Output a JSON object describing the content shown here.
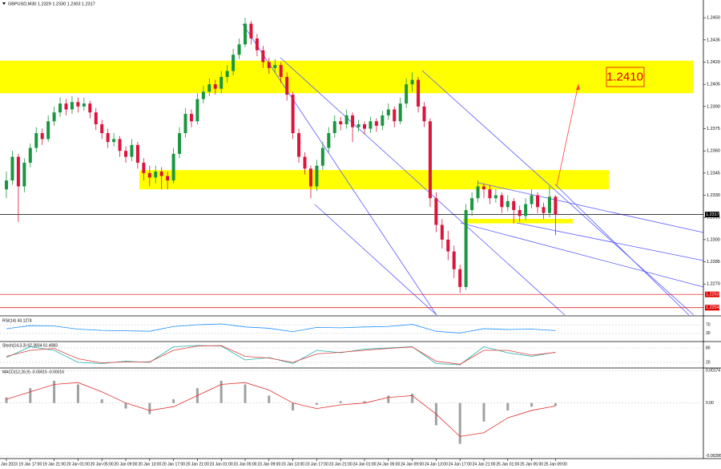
{
  "header": "GBPUSD,M30  1.2329 1.2330 1.2303 1.2317",
  "annotation": "1.2410",
  "chart_data": [
    {
      "type": "candlestick",
      "up_color": "#1a9641",
      "down_color": "#dc143c",
      "zone_color": "#ffff00",
      "categories": [
        "19 Jan 2023",
        null,
        null,
        null,
        "19 Jan 17:00",
        null,
        null,
        null,
        "19 Jan 21:00",
        null,
        null,
        null,
        "20 Jan 01:00",
        null,
        null,
        null,
        "20 Jan 05:00",
        null,
        null,
        null,
        "20 Jan 09:00",
        null,
        null,
        null,
        "20 Jan 13:00",
        null,
        null,
        null,
        "20 Jan 17:00",
        null,
        null,
        null,
        "20 Jan 21:00",
        null,
        null,
        null,
        "23 Jan 01:00",
        null,
        null,
        null,
        "23 Jan 05:00",
        null,
        null,
        null,
        "23 Jan 09:00",
        null,
        null,
        null,
        "23 Jan 13:00",
        null,
        null,
        null,
        "23 Jan 17:00",
        null,
        null,
        null,
        "23 Jan 21:00",
        null,
        null,
        null,
        "24 Jan 01:00",
        null,
        null,
        null,
        "24 Jan 05:00",
        null,
        null,
        null,
        "24 Jan 09:00",
        null,
        null,
        null,
        "24 Jan 13:00",
        null,
        null,
        null,
        "24 Jan 17:00",
        null,
        null,
        null,
        "24 Jan 21:00",
        null,
        null,
        null,
        "25 Jan 01:00",
        null,
        null,
        null,
        "25 Jan 05:00",
        null,
        null,
        null,
        "25 Jan 09:00"
      ],
      "ohlc": [
        [
          1.2334,
          1.2346,
          1.2328,
          1.234
        ],
        [
          1.234,
          1.236,
          1.2337,
          1.2356
        ],
        [
          1.2356,
          1.2358,
          1.2312,
          1.2336
        ],
        [
          1.2336,
          1.2355,
          1.2332,
          1.2352
        ],
        [
          1.2352,
          1.2365,
          1.2349,
          1.2362
        ],
        [
          1.2362,
          1.2376,
          1.2359,
          1.2372
        ],
        [
          1.2372,
          1.2375,
          1.2364,
          1.2368
        ],
        [
          1.2368,
          1.2384,
          1.2366,
          1.238
        ],
        [
          1.238,
          1.239,
          1.2377,
          1.2386
        ],
        [
          1.2386,
          1.2396,
          1.2383,
          1.2392
        ],
        [
          1.2392,
          1.2395,
          1.2384,
          1.2388
        ],
        [
          1.2388,
          1.2397,
          1.2385,
          1.2393
        ],
        [
          1.2393,
          1.2396,
          1.2386,
          1.239
        ],
        [
          1.239,
          1.2396,
          1.2387,
          1.2392
        ],
        [
          1.2392,
          1.2394,
          1.2382,
          1.2386
        ],
        [
          1.2386,
          1.2389,
          1.2374,
          1.2378
        ],
        [
          1.2378,
          1.2381,
          1.2368,
          1.2372
        ],
        [
          1.2372,
          1.2375,
          1.2362,
          1.2366
        ],
        [
          1.2366,
          1.2372,
          1.2363,
          1.2368
        ],
        [
          1.2368,
          1.237,
          1.2356,
          1.236
        ],
        [
          1.236,
          1.2363,
          1.2352,
          1.2356
        ],
        [
          1.2356,
          1.2368,
          1.2353,
          1.2364
        ],
        [
          1.2364,
          1.2366,
          1.2348,
          1.2352
        ],
        [
          1.2352,
          1.2355,
          1.234,
          1.2345
        ],
        [
          1.2345,
          1.235,
          1.2336,
          1.2342
        ],
        [
          1.2342,
          1.235,
          1.2338,
          1.2346
        ],
        [
          1.2346,
          1.2349,
          1.2334,
          1.2343
        ],
        [
          1.2343,
          1.2346,
          1.2334,
          1.234
        ],
        [
          1.234,
          1.2362,
          1.2338,
          1.2358
        ],
        [
          1.2358,
          1.2376,
          1.2355,
          1.2372
        ],
        [
          1.2372,
          1.2389,
          1.2369,
          1.2385
        ],
        [
          1.2385,
          1.2388,
          1.2376,
          1.238
        ],
        [
          1.238,
          1.2399,
          1.2378,
          1.2395
        ],
        [
          1.2395,
          1.2404,
          1.2392,
          1.24
        ],
        [
          1.24,
          1.2409,
          1.2397,
          1.2405
        ],
        [
          1.2405,
          1.2408,
          1.2398,
          1.2402
        ],
        [
          1.2402,
          1.2414,
          1.2399,
          1.241
        ],
        [
          1.241,
          1.2418,
          1.2406,
          1.2414
        ],
        [
          1.2414,
          1.2429,
          1.2411,
          1.2425
        ],
        [
          1.2425,
          1.2436,
          1.2422,
          1.2432
        ],
        [
          1.2432,
          1.245,
          1.243,
          1.2446
        ],
        [
          1.2446,
          1.2448,
          1.2432,
          1.2436
        ],
        [
          1.2436,
          1.2439,
          1.2424,
          1.2428
        ],
        [
          1.2428,
          1.2431,
          1.2416,
          1.242
        ],
        [
          1.242,
          1.2423,
          1.2412,
          1.2416
        ],
        [
          1.2416,
          1.2422,
          1.2413,
          1.2418
        ],
        [
          1.2418,
          1.242,
          1.2406,
          1.241
        ],
        [
          1.241,
          1.2413,
          1.2394,
          1.2398
        ],
        [
          1.2398,
          1.24,
          1.2368,
          1.2372
        ],
        [
          1.2372,
          1.2375,
          1.2352,
          1.2356
        ],
        [
          1.2356,
          1.2359,
          1.2344,
          1.2348
        ],
        [
          1.2348,
          1.235,
          1.2328,
          1.2336
        ],
        [
          1.2336,
          1.2354,
          1.2333,
          1.235
        ],
        [
          1.235,
          1.2366,
          1.2347,
          1.2362
        ],
        [
          1.2362,
          1.2376,
          1.2359,
          1.2372
        ],
        [
          1.2372,
          1.2384,
          1.2369,
          1.238
        ],
        [
          1.238,
          1.2383,
          1.2374,
          1.2378
        ],
        [
          1.2378,
          1.2388,
          1.2375,
          1.2384
        ],
        [
          1.2384,
          1.2386,
          1.2366,
          1.2376
        ],
        [
          1.2376,
          1.2381,
          1.2373,
          1.2378
        ],
        [
          1.2378,
          1.238,
          1.2371,
          1.2375
        ],
        [
          1.2375,
          1.2383,
          1.2372,
          1.238
        ],
        [
          1.238,
          1.2382,
          1.2373,
          1.2377
        ],
        [
          1.2377,
          1.2387,
          1.2374,
          1.2384
        ],
        [
          1.2384,
          1.2392,
          1.2381,
          1.2388
        ],
        [
          1.2388,
          1.239,
          1.2376,
          1.238
        ],
        [
          1.238,
          1.2396,
          1.2378,
          1.2392
        ],
        [
          1.2392,
          1.2409,
          1.2389,
          1.2405
        ],
        [
          1.2405,
          1.2413,
          1.24,
          1.2408
        ],
        [
          1.2408,
          1.241,
          1.2386,
          1.239
        ],
        [
          1.239,
          1.2393,
          1.2376,
          1.238
        ],
        [
          1.238,
          1.2382,
          1.2322,
          1.2328
        ],
        [
          1.2328,
          1.2332,
          1.2305,
          1.231
        ],
        [
          1.231,
          1.2314,
          1.2294,
          1.23
        ],
        [
          1.23,
          1.2306,
          1.2286,
          1.2292
        ],
        [
          1.2292,
          1.2296,
          1.2274,
          1.228
        ],
        [
          1.228,
          1.2283,
          1.2264,
          1.2268
        ],
        [
          1.2268,
          1.2324,
          1.2266,
          1.232
        ],
        [
          1.232,
          1.2332,
          1.2316,
          1.2328
        ],
        [
          1.2328,
          1.234,
          1.2325,
          1.2336
        ],
        [
          1.2336,
          1.2338,
          1.2328,
          1.2334
        ],
        [
          1.2334,
          1.2337,
          1.2324,
          1.2328
        ],
        [
          1.2328,
          1.2334,
          1.2325,
          1.233
        ],
        [
          1.233,
          1.2332,
          1.2318,
          1.2322
        ],
        [
          1.2322,
          1.233,
          1.2319,
          1.2326
        ],
        [
          1.2326,
          1.2328,
          1.2311,
          1.232
        ],
        [
          1.232,
          1.2323,
          1.2312,
          1.2316
        ],
        [
          1.2316,
          1.2328,
          1.2313,
          1.2324
        ],
        [
          1.2324,
          1.2334,
          1.2321,
          1.233
        ],
        [
          1.233,
          1.2332,
          1.2318,
          1.2322
        ],
        [
          1.2322,
          1.2325,
          1.2314,
          1.2318
        ],
        [
          1.2318,
          1.2336,
          1.2315,
          1.2329
        ],
        [
          1.2329,
          1.233,
          1.2303,
          1.2317
        ]
      ],
      "ylim": [
        1.2249,
        1.2462
      ],
      "yticks": [
        {
          "value": 1.227,
          "label": "1.2270"
        },
        {
          "value": 1.2285,
          "label": "1.2285"
        },
        {
          "value": 1.23,
          "label": "1.2300"
        },
        {
          "value": 1.2315,
          "label": "1.2315"
        },
        {
          "value": 1.233,
          "label": "1.2330"
        },
        {
          "value": 1.2345,
          "label": "1.2345"
        },
        {
          "value": 1.236,
          "label": "1.2360"
        },
        {
          "value": 1.2375,
          "label": "1.2375"
        },
        {
          "value": 1.239,
          "label": "1.2390"
        },
        {
          "value": 1.2405,
          "label": "1.2405"
        },
        {
          "value": 1.242,
          "label": "1.2420"
        },
        {
          "value": 1.2435,
          "label": "1.2435"
        },
        {
          "value": 1.245,
          "label": "1.2450"
        }
      ],
      "levels": [
        {
          "value": 1.2317,
          "label": "1.2317",
          "color": "#000000"
        },
        {
          "value": 1.2263,
          "label": "1.2263",
          "color": "#e00000"
        },
        {
          "value": 1.2254,
          "label": "1.2254",
          "color": "#e00000"
        }
      ],
      "zones": [
        [
          1.2399,
          1.2421
        ],
        [
          1.2334,
          1.2347
        ],
        [
          1.2311,
          1.2314
        ]
      ]
    },
    {
      "type": "line",
      "title": "RSI(14) 43.1274",
      "ylim": [
        0,
        100
      ],
      "yticks": [
        30,
        70
      ],
      "series": [
        {
          "color": "#1e90ff",
          "values": [
            52,
            66,
            64,
            50,
            44,
            42,
            40,
            62,
            70,
            74,
            60,
            54,
            38,
            58,
            56,
            60,
            62,
            72,
            40,
            32,
            52,
            48,
            50,
            43.1274
          ]
        }
      ]
    },
    {
      "type": "line",
      "title": "Stoch(14,3,3) 62.3834 61.4083",
      "ylim": [
        0,
        100
      ],
      "yticks": [
        20,
        80
      ],
      "series": [
        {
          "color": "#20b2aa",
          "values": [
            40,
            85,
            70,
            20,
            15,
            25,
            20,
            85,
            90,
            88,
            30,
            40,
            15,
            70,
            60,
            75,
            80,
            85,
            15,
            10,
            85,
            60,
            45,
            62.3834
          ]
        },
        {
          "color": "#e04040",
          "values": [
            45,
            70,
            78,
            35,
            18,
            22,
            22,
            70,
            88,
            90,
            45,
            38,
            20,
            55,
            62,
            70,
            78,
            84,
            25,
            12,
            70,
            70,
            50,
            61.4083
          ]
        }
      ]
    },
    {
      "type": "macd",
      "title": "MACD(12,26,9) -0.00015 -0.00016",
      "ylim": [
        -0.00295,
        0.0018
      ],
      "yticks": [
        {
          "value": 0.00174,
          "label": "0.00174"
        },
        {
          "value": 0,
          "label": "0.00"
        },
        {
          "value": -0.00286,
          "label": "-0.00286"
        }
      ],
      "series": [
        {
          "kind": "bar",
          "color": "#a0a0a0",
          "values": [
            0.0003,
            0.0008,
            0.0012,
            0.001,
            0.0002,
            -0.0003,
            -0.0006,
            0.0002,
            0.0008,
            0.0012,
            0.001,
            0.0004,
            -0.0004,
            -0.0001,
            0.0001,
            0.0001,
            0.0004,
            0.0005,
            -0.0012,
            -0.0022,
            -0.001,
            -0.0004,
            -0.0002,
            -0.00015
          ]
        },
        {
          "kind": "line",
          "color": "#e03030",
          "values": [
            0.0002,
            0.0006,
            0.001,
            0.0011,
            0.0006,
            0,
            -0.0004,
            -0.0002,
            0.0004,
            0.001,
            0.0011,
            0.0007,
            0,
            -0.0003,
            -0.0001,
            0,
            0.0003,
            0.0004,
            -0.0006,
            -0.0018,
            -0.0016,
            -0.0008,
            -0.0004,
            -0.00016
          ]
        }
      ]
    }
  ]
}
